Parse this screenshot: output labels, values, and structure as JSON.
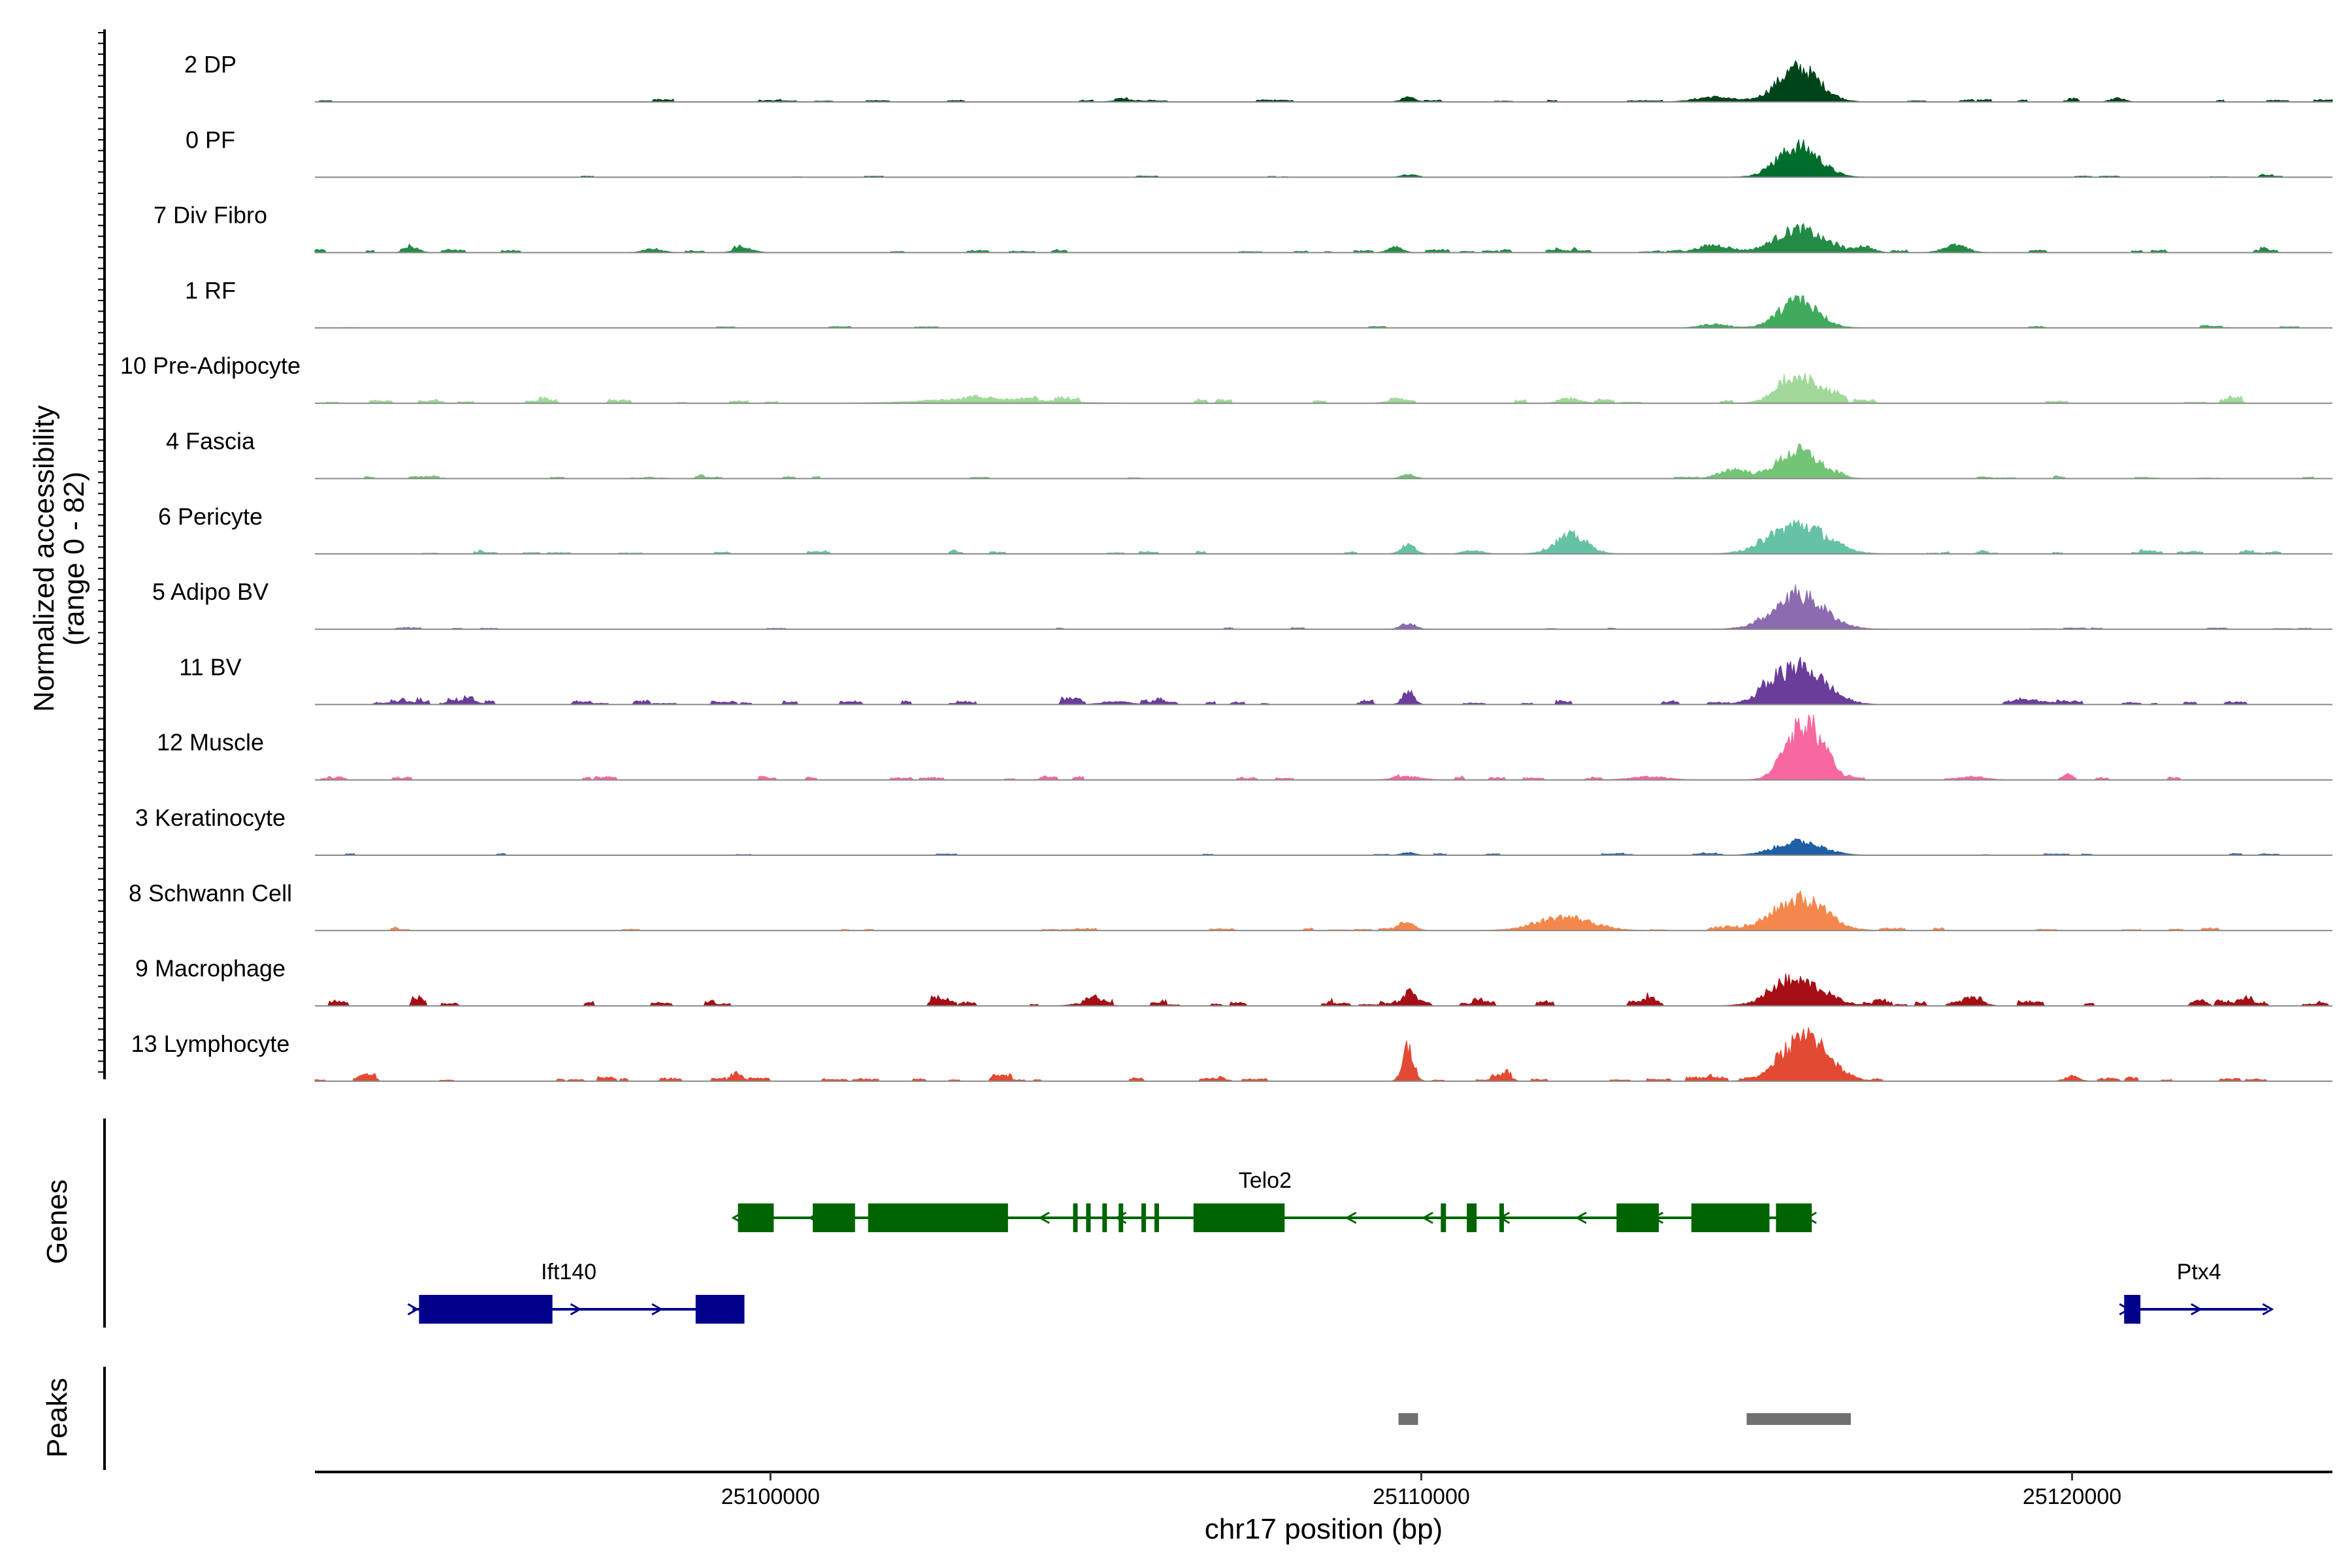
{
  "chart_data": {
    "type": "area",
    "title": "",
    "ylabel_line1": "Normalized accessibility",
    "ylabel_line2": "(range 0 - 82)",
    "genes_label": "Genes",
    "peaks_label": "Peaks",
    "xlabel": "chr17 position (bp)",
    "xlim": [
      25093000,
      25124000
    ],
    "xticks": [
      25100000,
      25110000,
      25120000
    ],
    "xtick_labels": [
      "25100000",
      "25110000",
      "25120000"
    ],
    "tracks": [
      {
        "name": "2 DP",
        "color": "#00441b",
        "peaks": [
          [
            25115800,
            0.55,
            450
          ],
          [
            25114500,
            0.08,
            400
          ],
          [
            25109800,
            0.07,
            150
          ],
          [
            25120700,
            0.06,
            150
          ],
          [
            25105500,
            0.03,
            300
          ]
        ],
        "noise": 0.03
      },
      {
        "name": "0 PF",
        "color": "#006d2c",
        "peaks": [
          [
            25115800,
            0.5,
            450
          ],
          [
            25109800,
            0.04,
            150
          ]
        ],
        "noise": 0.015
      },
      {
        "name": "7 Div Fibro",
        "color": "#238b45",
        "peaks": [
          [
            25115800,
            0.38,
            500
          ],
          [
            25114500,
            0.12,
            350
          ],
          [
            25116800,
            0.1,
            200
          ],
          [
            25118200,
            0.12,
            250
          ],
          [
            25109600,
            0.1,
            150
          ],
          [
            25094500,
            0.08,
            150
          ],
          [
            25099600,
            0.07,
            200
          ],
          [
            25098200,
            0.06,
            200
          ]
        ],
        "noise": 0.035
      },
      {
        "name": "1 RF",
        "color": "#41ab5d",
        "peaks": [
          [
            25115800,
            0.45,
            420
          ],
          [
            25114500,
            0.06,
            300
          ]
        ],
        "noise": 0.015
      },
      {
        "name": "10 Pre-Adipocyte",
        "color": "#a1d99b",
        "peaks": [
          [
            25115800,
            0.45,
            420
          ],
          [
            25103300,
            0.07,
            1200
          ],
          [
            25112300,
            0.06,
            250
          ],
          [
            25109600,
            0.05,
            200
          ]
        ],
        "noise": 0.04
      },
      {
        "name": "4 Fascia",
        "color": "#74c476",
        "peaks": [
          [
            25115800,
            0.45,
            450
          ],
          [
            25114800,
            0.15,
            300
          ],
          [
            25109800,
            0.06,
            150
          ]
        ],
        "noise": 0.025
      },
      {
        "name": "6 Pericyte",
        "color": "#66c2a4",
        "peaks": [
          [
            25115800,
            0.48,
            600
          ],
          [
            25112300,
            0.3,
            350
          ],
          [
            25109800,
            0.15,
            150
          ],
          [
            25110800,
            0.06,
            200
          ]
        ],
        "noise": 0.03
      },
      {
        "name": "5 Adipo BV",
        "color": "#8c6bb1",
        "peaks": [
          [
            25115800,
            0.55,
            550
          ],
          [
            25109800,
            0.1,
            150
          ]
        ],
        "noise": 0.02
      },
      {
        "name": "11 BV",
        "color": "#6a3d9a",
        "peaks": [
          [
            25115800,
            0.62,
            550
          ],
          [
            25109800,
            0.22,
            120
          ],
          [
            25095400,
            0.08,
            150
          ],
          [
            25105300,
            0.05,
            300
          ],
          [
            25119500,
            0.05,
            400
          ]
        ],
        "noise": 0.045
      },
      {
        "name": "12 Muscle",
        "color": "#f768a1",
        "peaks": [
          [
            25115900,
            0.95,
            380
          ],
          [
            25109800,
            0.05,
            300
          ],
          [
            25113500,
            0.05,
            400
          ],
          [
            25118500,
            0.04,
            300
          ]
        ],
        "noise": 0.035
      },
      {
        "name": "3 Keratinocyte",
        "color": "#1f5fa8",
        "peaks": [
          [
            25115800,
            0.22,
            500
          ],
          [
            25109800,
            0.04,
            150
          ]
        ],
        "noise": 0.02
      },
      {
        "name": "8 Schwann Cell",
        "color": "#f4874b",
        "peaks": [
          [
            25115800,
            0.52,
            550
          ],
          [
            25112200,
            0.22,
            600
          ],
          [
            25109800,
            0.14,
            150
          ]
        ],
        "noise": 0.03
      },
      {
        "name": "9 Macrophage",
        "color": "#a50f15",
        "peaks": [
          [
            25115800,
            0.4,
            550
          ],
          [
            25109800,
            0.2,
            150
          ],
          [
            25118500,
            0.1,
            200
          ],
          [
            25104900,
            0.05,
            300
          ]
        ],
        "noise": 0.055
      },
      {
        "name": "13 Lymphocyte",
        "color": "#e34a33",
        "peaks": [
          [
            25115900,
            0.72,
            500
          ],
          [
            25109800,
            0.55,
            120
          ],
          [
            25099500,
            0.1,
            120
          ],
          [
            25111300,
            0.1,
            120
          ],
          [
            25120000,
            0.08,
            150
          ]
        ],
        "noise": 0.045
      }
    ],
    "genes": [
      {
        "name": "Telo2",
        "color": "#006400",
        "strand": "-",
        "row": 0,
        "start": 25099500,
        "end": 25116000,
        "exons": [
          [
            25099500,
            25100050
          ],
          [
            25100650,
            25101300
          ],
          [
            25101500,
            25103650
          ],
          [
            25104650,
            25104720
          ],
          [
            25104850,
            25104920
          ],
          [
            25105100,
            25105170
          ],
          [
            25105350,
            25105420
          ],
          [
            25105700,
            25105770
          ],
          [
            25105900,
            25105970
          ],
          [
            25106500,
            25107900
          ],
          [
            25110300,
            25110380
          ],
          [
            25110700,
            25110850
          ],
          [
            25111200,
            25111270
          ],
          [
            25113000,
            25113650
          ],
          [
            25114150,
            25115350
          ],
          [
            25115450,
            25116000
          ]
        ],
        "label_x": 25107600
      },
      {
        "name": "Ift140",
        "color": "#00008b",
        "strand": "+",
        "row": 1,
        "start": 25094500,
        "end": 25099500,
        "exons": [
          [
            25094600,
            25096650
          ],
          [
            25098850,
            25099600
          ]
        ],
        "label_x": 25096900
      },
      {
        "name": "Ptx4",
        "color": "#00008b",
        "strand": "+",
        "row": 1,
        "start": 25120800,
        "end": 25123000,
        "exons": [
          [
            25120800,
            25121050
          ]
        ],
        "label_x": 25121950
      }
    ],
    "peaks": [
      [
        25109650,
        25109950
      ],
      [
        25115000,
        25116600
      ]
    ],
    "peaks_color": "#707070"
  }
}
